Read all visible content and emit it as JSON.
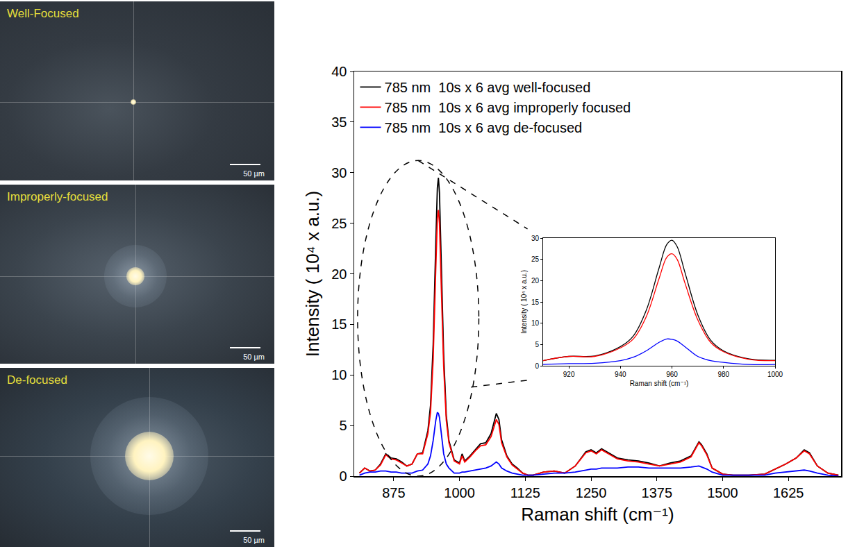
{
  "images": [
    {
      "label": "Well-Focused",
      "scale_bar": "50 µm"
    },
    {
      "label": "Improperly-focused",
      "scale_bar": "50 µm"
    },
    {
      "label": "De-focused",
      "scale_bar": "50 µm"
    }
  ],
  "chart_data": [
    {
      "type": "line",
      "x_label": "Raman shift (cm⁻¹)",
      "y_label": "Intensity ( 10⁴ x a.u.)",
      "x": [
        810,
        820,
        830,
        840,
        850,
        860,
        870,
        880,
        890,
        900,
        910,
        920,
        930,
        940,
        945,
        950,
        955,
        958,
        960,
        962,
        965,
        970,
        975,
        980,
        990,
        1000,
        1005,
        1010,
        1020,
        1030,
        1040,
        1050,
        1060,
        1070,
        1075,
        1080,
        1090,
        1100,
        1110,
        1120,
        1130,
        1140,
        1160,
        1180,
        1200,
        1220,
        1240,
        1250,
        1260,
        1270,
        1280,
        1300,
        1320,
        1340,
        1360,
        1380,
        1400,
        1420,
        1440,
        1450,
        1455,
        1460,
        1470,
        1480,
        1500,
        1520,
        1550,
        1580,
        1600,
        1620,
        1640,
        1655,
        1665,
        1680,
        1700,
        1720
      ],
      "series": [
        {
          "name": "785 nm  10s x 6 avg well-focused",
          "color": "#000000",
          "values": [
            0.3,
            0.8,
            0.5,
            0.6,
            1.2,
            2.2,
            1.8,
            1.7,
            1.4,
            1.0,
            1.2,
            2.2,
            2.3,
            4.5,
            7,
            13,
            23,
            28.5,
            29.5,
            28,
            22,
            12,
            6,
            3.5,
            1.6,
            1.3,
            2.2,
            1.5,
            2.0,
            2.6,
            3.2,
            3.3,
            4.2,
            6.2,
            5.6,
            3.6,
            2.0,
            1.2,
            0.8,
            0.3,
            0.1,
            0.1,
            0.4,
            0.5,
            0.3,
            1.0,
            2.4,
            2.6,
            2.3,
            2.7,
            2.4,
            1.8,
            1.6,
            1.5,
            1.3,
            1.0,
            1.3,
            1.5,
            2.0,
            3.0,
            3.4,
            3.1,
            2.2,
            0.8,
            0.2,
            0.1,
            0.1,
            0.2,
            0.7,
            1.2,
            1.8,
            2.6,
            2.3,
            1.0,
            0.3,
            0.1
          ]
        },
        {
          "name": "785 nm  10s x 6 avg improperly focused",
          "color": "#ff0000",
          "values": [
            0.3,
            0.8,
            0.5,
            0.6,
            1.1,
            2.1,
            1.7,
            1.6,
            1.3,
            1.0,
            1.2,
            2.2,
            2.2,
            4.2,
            6.3,
            11.5,
            20.5,
            25.5,
            26.3,
            25,
            19.5,
            10.8,
            5.5,
            3.3,
            1.5,
            1.2,
            2.0,
            1.4,
            1.9,
            2.5,
            3.0,
            3.1,
            3.9,
            5.6,
            5.1,
            3.3,
            1.9,
            1.1,
            0.7,
            0.3,
            0.1,
            0.1,
            0.4,
            0.5,
            0.3,
            1.0,
            2.3,
            2.5,
            2.2,
            2.6,
            2.3,
            1.7,
            1.5,
            1.4,
            1.2,
            1.0,
            1.2,
            1.4,
            1.9,
            2.9,
            3.3,
            3.0,
            2.1,
            0.8,
            0.2,
            0.1,
            0.1,
            0.2,
            0.7,
            1.2,
            1.8,
            2.5,
            2.2,
            1.0,
            0.3,
            0.1
          ]
        },
        {
          "name": "785 nm  10s x 6 avg de-focused",
          "color": "#0000ff",
          "values": [
            0.1,
            0.3,
            0.4,
            0.4,
            0.5,
            0.5,
            0.4,
            0.4,
            0.3,
            0.3,
            0.3,
            0.5,
            0.6,
            1.2,
            2.0,
            3.5,
            5.5,
            6.3,
            6.2,
            5.8,
            4.5,
            2.2,
            1.2,
            0.8,
            0.3,
            0.3,
            0.4,
            0.4,
            0.5,
            0.6,
            0.7,
            0.8,
            1.0,
            1.4,
            1.2,
            0.8,
            0.5,
            0.3,
            0.2,
            0.1,
            0.1,
            0.1,
            0.2,
            0.3,
            0.3,
            0.4,
            0.6,
            0.7,
            0.7,
            0.8,
            0.8,
            0.8,
            0.9,
            0.9,
            0.8,
            0.8,
            0.8,
            0.8,
            0.9,
            1.0,
            1.0,
            0.9,
            0.7,
            0.4,
            0.1,
            0.1,
            0.1,
            0.1,
            0.3,
            0.4,
            0.5,
            0.6,
            0.5,
            0.3,
            0.1,
            0.0
          ]
        }
      ],
      "xlim": [
        800,
        1725
      ],
      "ylim": [
        0,
        40
      ],
      "xticks": [
        875,
        1000,
        1125,
        1250,
        1375,
        1500,
        1625
      ],
      "yticks": [
        0,
        5,
        10,
        15,
        20,
        25,
        30,
        35,
        40
      ],
      "grid": false,
      "legend": "top-left"
    },
    {
      "type": "line",
      "x_label": "Raman shift (cm⁻¹)",
      "y_label": "Intensity ( 10⁴ x a.u.)",
      "x": [
        910,
        920,
        930,
        940,
        945,
        950,
        955,
        958,
        960,
        962,
        965,
        970,
        975,
        980,
        990,
        1000
      ],
      "series": [
        {
          "color": "#000000",
          "values": [
            1.2,
            2.2,
            2.3,
            4.5,
            7,
            13,
            23,
            28.5,
            29.5,
            28,
            22,
            12,
            6,
            3.5,
            1.6,
            1.3
          ]
        },
        {
          "color": "#ff0000",
          "values": [
            1.2,
            2.2,
            2.2,
            4.2,
            6.3,
            11.5,
            20.5,
            25.5,
            26.3,
            25,
            19.5,
            10.8,
            5.5,
            3.3,
            1.5,
            1.2
          ]
        },
        {
          "color": "#0000ff",
          "values": [
            0.3,
            0.5,
            0.6,
            1.2,
            2.0,
            3.5,
            5.5,
            6.3,
            6.2,
            5.8,
            4.5,
            2.2,
            1.2,
            0.8,
            0.3,
            0.3
          ]
        }
      ],
      "xlim": [
        910,
        1000
      ],
      "ylim": [
        0,
        30
      ],
      "xticks": [
        920,
        940,
        960,
        980,
        1000
      ],
      "yticks": [
        0,
        5,
        10,
        15,
        20,
        25,
        30
      ],
      "grid": false
    }
  ]
}
